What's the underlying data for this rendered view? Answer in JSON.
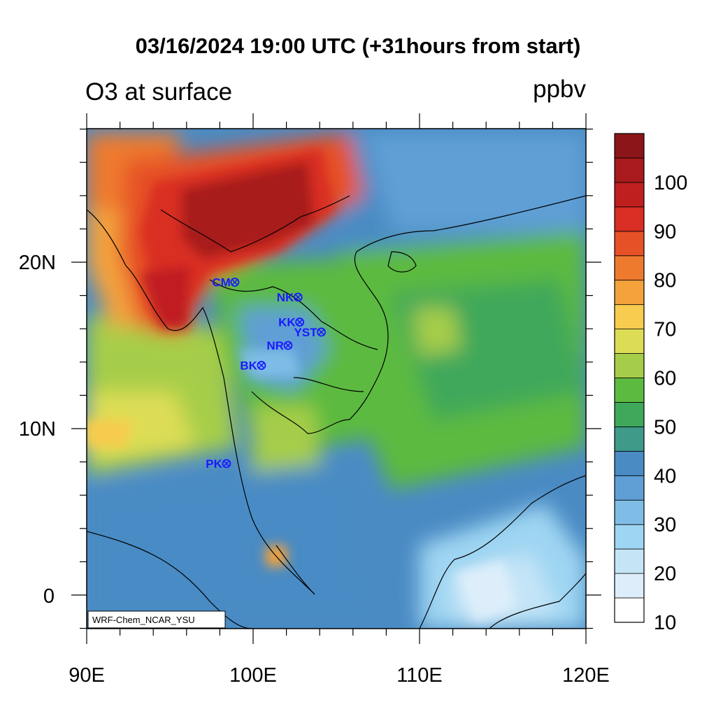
{
  "title": "03/16/2024 19:00 UTC (+31hours from start)",
  "left_label": "O3 at surface",
  "right_label": "ppbv",
  "credit": "WRF-Chem_NCAR_YSU",
  "x_ticks": [
    "90E",
    "100E",
    "110E",
    "120E"
  ],
  "y_ticks": [
    "20N",
    "10N",
    "0"
  ],
  "colorbar": {
    "labels": [
      "100",
      "90",
      "80",
      "70",
      "60",
      "50",
      "40",
      "30",
      "20",
      "10"
    ],
    "colors": [
      "#ffffff",
      "#ddeefa",
      "#c5e5f7",
      "#9ed5f2",
      "#7fbde6",
      "#5f9fd6",
      "#4a8bc4",
      "#3f9a8a",
      "#3fa85a",
      "#5cba40",
      "#a6cd4a",
      "#dddd55",
      "#f8cc4e",
      "#f3a23c",
      "#ee7a2e",
      "#e65127",
      "#d92e23",
      "#c01f20",
      "#a81a1c",
      "#8b1518"
    ]
  },
  "stations": [
    {
      "name": "CM",
      "lon": 98.9,
      "lat": 18.8
    },
    {
      "name": "NK",
      "lon": 102.7,
      "lat": 17.9
    },
    {
      "name": "KK",
      "lon": 102.8,
      "lat": 16.4
    },
    {
      "name": "YST",
      "lon": 104.1,
      "lat": 15.8
    },
    {
      "name": "NR",
      "lon": 102.1,
      "lat": 15.0
    },
    {
      "name": "BK",
      "lon": 100.5,
      "lat": 13.8
    },
    {
      "name": "PK",
      "lon": 98.4,
      "lat": 7.9
    }
  ]
}
